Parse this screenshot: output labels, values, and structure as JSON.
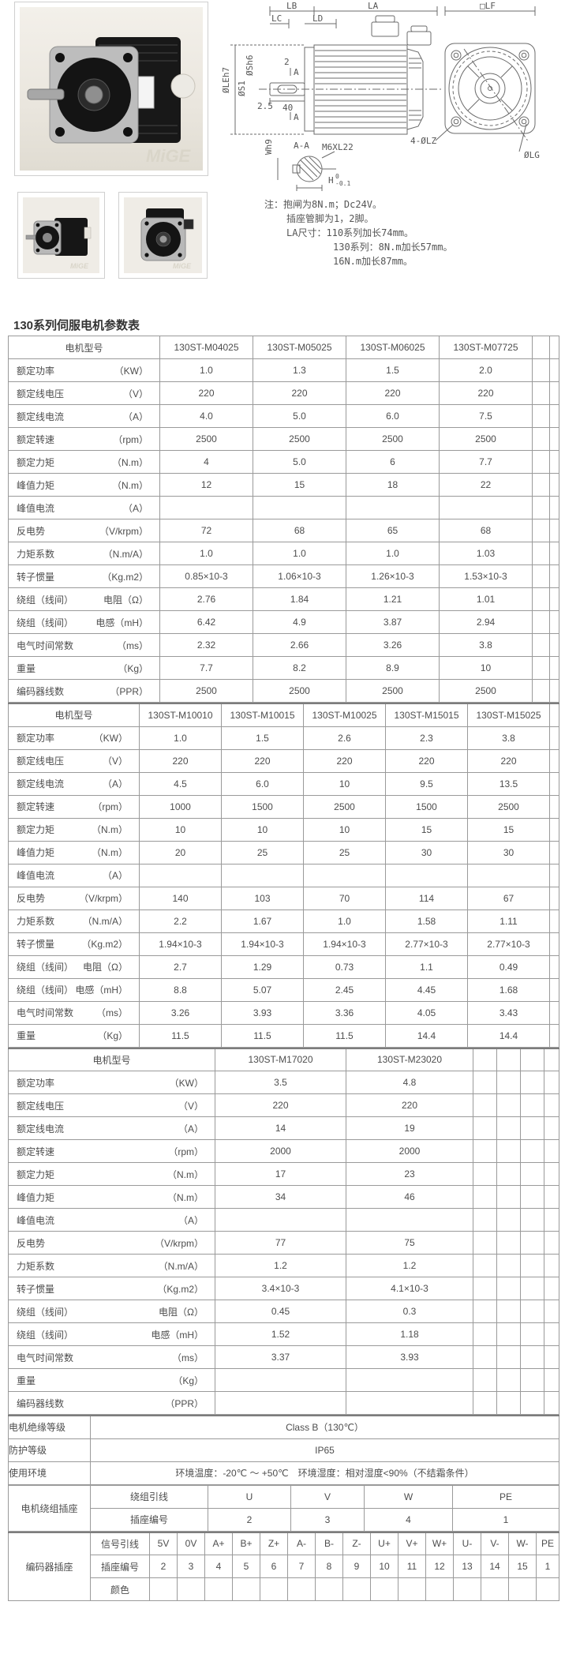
{
  "page": {
    "title": "130系列伺服电机参数表"
  },
  "photos": {
    "watermark": "MiGE"
  },
  "drawing": {
    "dims": {
      "lb": "LB",
      "lc": "LC",
      "ld": "LD",
      "la": "LA",
      "lf": "□LF",
      "le": "ØLEh7",
      "sh6": "ØSh6",
      "s1": "ØS1",
      "two": "2",
      "a": "A",
      "d25": "2.5",
      "d40": "40",
      "wh9": "Wh9",
      "aa": "A-A",
      "m6": "M6XL22",
      "h": "H",
      "htol_top": "0",
      "htol_bot": "-0.1",
      "lz": "4-ØLZ",
      "lg": "ØLG"
    },
    "notes": [
      "注：抱闸为8N.m；Dc24V。",
      "插座管脚为1，2脚。",
      "LA尺寸：110系列加长74mm。",
      "130系列：8N.m加长57mm。",
      "16N.m加长87mm。"
    ]
  },
  "table": {
    "model_header_label": "电机型号",
    "sections": [
      {
        "type": "models",
        "models": [
          "130ST-M04025",
          "130ST-M05025",
          "130ST-M06025",
          "130ST-M07725"
        ],
        "rows": [
          {
            "label": "额定功率",
            "unit": "（KW）",
            "values": [
              "1.0",
              "1.3",
              "1.5",
              "2.0"
            ]
          },
          {
            "label": "额定线电压",
            "unit": "（V）",
            "values": [
              "220",
              "220",
              "220",
              "220"
            ]
          },
          {
            "label": "额定线电流",
            "unit": "（A）",
            "values": [
              "4.0",
              "5.0",
              "6.0",
              "7.5"
            ]
          },
          {
            "label": "额定转速",
            "unit": "（rpm）",
            "values": [
              "2500",
              "2500",
              "2500",
              "2500"
            ]
          },
          {
            "label": "额定力矩",
            "unit": "（N.m）",
            "values": [
              "4",
              "5.0",
              "6",
              "7.7"
            ]
          },
          {
            "label": "峰值力矩",
            "unit": "（N.m）",
            "values": [
              "12",
              "15",
              "18",
              "22"
            ]
          },
          {
            "label": "峰值电流",
            "unit": "（A）",
            "values": [
              "",
              "",
              "",
              ""
            ]
          },
          {
            "label": "反电势",
            "unit": "（V/krpm）",
            "values": [
              "72",
              "68",
              "65",
              "68"
            ]
          },
          {
            "label": "力矩系数",
            "unit": "（N.m/A）",
            "values": [
              "1.0",
              "1.0",
              "1.0",
              "1.03"
            ]
          },
          {
            "label": "转子惯量",
            "unit": "（Kg.m2）",
            "values": [
              "0.85×10-3",
              "1.06×10-3",
              "1.26×10-3",
              "1.53×10-3"
            ]
          },
          {
            "label": "绕组（线间）",
            "unit": "电阻（Ω）",
            "values": [
              "2.76",
              "1.84",
              "1.21",
              "1.01"
            ]
          },
          {
            "label": "绕组（线间）",
            "unit": "电感（mH）",
            "values": [
              "6.42",
              "4.9",
              "3.87",
              "2.94"
            ]
          },
          {
            "label": "电气时间常数",
            "unit": "（ms）",
            "values": [
              "2.32",
              "2.66",
              "3.26",
              "3.8"
            ]
          },
          {
            "label": "重量",
            "unit": "（Kg）",
            "values": [
              "7.7",
              "8.2",
              "8.9",
              "10"
            ]
          },
          {
            "label": "编码器线数",
            "unit": "（PPR）",
            "values": [
              "2500",
              "2500",
              "2500",
              "2500"
            ]
          }
        ]
      },
      {
        "type": "models",
        "models": [
          "130ST-M10010",
          "130ST-M10015",
          "130ST-M10025",
          "130ST-M15015",
          "130ST-M15025"
        ],
        "rows": [
          {
            "label": "额定功率",
            "unit": "（KW）",
            "values": [
              "1.0",
              "1.5",
              "2.6",
              "2.3",
              "3.8"
            ]
          },
          {
            "label": "额定线电压",
            "unit": "（V）",
            "values": [
              "220",
              "220",
              "220",
              "220",
              "220"
            ]
          },
          {
            "label": "额定线电流",
            "unit": "（A）",
            "values": [
              "4.5",
              "6.0",
              "10",
              "9.5",
              "13.5"
            ]
          },
          {
            "label": "额定转速",
            "unit": "（rpm）",
            "values": [
              "1000",
              "1500",
              "2500",
              "1500",
              "2500"
            ]
          },
          {
            "label": "额定力矩",
            "unit": "（N.m）",
            "values": [
              "10",
              "10",
              "10",
              "15",
              "15"
            ]
          },
          {
            "label": "峰值力矩",
            "unit": "（N.m）",
            "values": [
              "20",
              "25",
              "25",
              "30",
              "30"
            ]
          },
          {
            "label": "峰值电流",
            "unit": "（A）",
            "values": [
              "",
              "",
              "",
              "",
              ""
            ]
          },
          {
            "label": "反电势",
            "unit": "（V/krpm）",
            "values": [
              "140",
              "103",
              "70",
              "114",
              "67"
            ]
          },
          {
            "label": "力矩系数",
            "unit": "（N.m/A）",
            "values": [
              "2.2",
              "1.67",
              "1.0",
              "1.58",
              "1.11"
            ]
          },
          {
            "label": "转子惯量",
            "unit": "（Kg.m2）",
            "values": [
              "1.94×10-3",
              "1.94×10-3",
              "1.94×10-3",
              "2.77×10-3",
              "2.77×10-3"
            ]
          },
          {
            "label": "绕组（线间）",
            "unit": "电阻（Ω）",
            "values": [
              "2.7",
              "1.29",
              "0.73",
              "1.1",
              "0.49"
            ]
          },
          {
            "label": "绕组（线间）",
            "unit": "电感（mH）",
            "values": [
              "8.8",
              "5.07",
              "2.45",
              "4.45",
              "1.68"
            ]
          },
          {
            "label": "电气时间常数",
            "unit": "（ms）",
            "values": [
              "3.26",
              "3.93",
              "3.36",
              "4.05",
              "3.43"
            ]
          },
          {
            "label": "重量",
            "unit": "（Kg）",
            "values": [
              "11.5",
              "11.5",
              "11.5",
              "14.4",
              "14.4"
            ]
          }
        ]
      },
      {
        "type": "models",
        "models": [
          "130ST-M17020",
          "130ST-M23020"
        ],
        "rows": [
          {
            "label": "额定功率",
            "unit": "（KW）",
            "values": [
              "3.5",
              "4.8"
            ]
          },
          {
            "label": "额定线电压",
            "unit": "（V）",
            "values": [
              "220",
              "220"
            ]
          },
          {
            "label": "额定线电流",
            "unit": "（A）",
            "values": [
              "14",
              "19"
            ]
          },
          {
            "label": "额定转速",
            "unit": "（rpm）",
            "values": [
              "2000",
              "2000"
            ]
          },
          {
            "label": "额定力矩",
            "unit": "（N.m）",
            "values": [
              "17",
              "23"
            ]
          },
          {
            "label": "峰值力矩",
            "unit": "（N.m）",
            "values": [
              "34",
              "46"
            ]
          },
          {
            "label": "峰值电流",
            "unit": "（A）",
            "values": [
              "",
              ""
            ]
          },
          {
            "label": "反电势",
            "unit": "（V/krpm）",
            "values": [
              "77",
              "75"
            ]
          },
          {
            "label": "力矩系数",
            "unit": "（N.m/A）",
            "values": [
              "1.2",
              "1.2"
            ]
          },
          {
            "label": "转子惯量",
            "unit": "（Kg.m2）",
            "values": [
              "3.4×10-3",
              "4.1×10-3"
            ]
          },
          {
            "label": "绕组（线间）",
            "unit": "电阻（Ω）",
            "values": [
              "0.45",
              "0.3"
            ]
          },
          {
            "label": "绕组（线间）",
            "unit": "电感（mH）",
            "values": [
              "1.52",
              "1.18"
            ]
          },
          {
            "label": "电气时间常数",
            "unit": "（ms）",
            "values": [
              "3.37",
              "3.93"
            ]
          },
          {
            "label": "重量",
            "unit": "（Kg）",
            "values": [
              "",
              ""
            ]
          },
          {
            "label": "编码器线数",
            "unit": "（PPR）",
            "values": [
              "",
              ""
            ]
          }
        ]
      },
      {
        "type": "kv",
        "rows": [
          {
            "label": "电机绝缘等级",
            "value": "Class B（130℃）"
          },
          {
            "label": "防护等级",
            "value": "IP65"
          },
          {
            "label": "使用环境",
            "value": "环境温度：-20℃ ～ +50℃　环境湿度：相对湿度<90%（不结霜条件）"
          }
        ]
      },
      {
        "type": "pin",
        "label": "电机绕组插座",
        "rows": [
          {
            "label": "绕组引线",
            "cells": [
              "U",
              "V",
              "W",
              "PE"
            ]
          },
          {
            "label": "插座编号",
            "cells": [
              "2",
              "3",
              "4",
              "1"
            ]
          }
        ]
      },
      {
        "type": "pin",
        "label": "编码器插座",
        "rows": [
          {
            "label": "信号引线",
            "cells": [
              "5V",
              "0V",
              "A+",
              "B+",
              "Z+",
              "A-",
              "B-",
              "Z-",
              "U+",
              "V+",
              "W+",
              "U-",
              "V-",
              "W-",
              "PE"
            ]
          },
          {
            "label": "插座编号",
            "cells": [
              "2",
              "3",
              "4",
              "5",
              "6",
              "7",
              "8",
              "9",
              "10",
              "11",
              "12",
              "13",
              "14",
              "15",
              "1"
            ]
          },
          {
            "label": "颜色",
            "cells": [
              "",
              "",
              "",
              "",
              "",
              "",
              "",
              "",
              "",
              "",
              "",
              "",
              "",
              "",
              ""
            ]
          }
        ]
      }
    ]
  }
}
